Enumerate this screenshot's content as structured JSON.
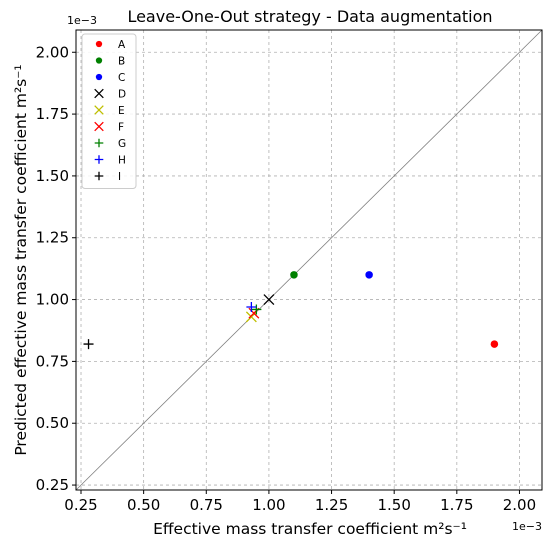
{
  "chart_data": {
    "type": "scatter",
    "title": "Leave-One-Out strategy - Data augmentation",
    "xlabel": "Effective mass transfer coefficient m²s⁻¹",
    "ylabel": "Predicted effective mass transfer coefficient m²s⁻¹",
    "x_offset_label": "1e−3",
    "y_offset_label": "1e−3",
    "xlim": [
      0.23,
      2.09
    ],
    "ylim": [
      0.23,
      2.09
    ],
    "x_ticks": [
      "0.25",
      "0.50",
      "0.75",
      "1.00",
      "1.25",
      "1.50",
      "1.75",
      "2.00"
    ],
    "y_ticks": [
      "0.25",
      "0.50",
      "0.75",
      "1.00",
      "1.25",
      "1.50",
      "1.75",
      "2.00"
    ],
    "tick_values": [
      0.25,
      0.5,
      0.75,
      1.0,
      1.25,
      1.5,
      1.75,
      2.0
    ],
    "grid": true,
    "reference_line": "y = x",
    "legend_position": "top-left",
    "series": [
      {
        "name": "A",
        "marker": "dot",
        "color": "#ff0000",
        "points": [
          [
            1.9,
            0.82
          ]
        ]
      },
      {
        "name": "B",
        "marker": "dot",
        "color": "#008000",
        "points": [
          [
            1.1,
            1.1
          ]
        ]
      },
      {
        "name": "C",
        "marker": "dot",
        "color": "#0000ff",
        "points": [
          [
            1.4,
            1.1
          ]
        ]
      },
      {
        "name": "D",
        "marker": "x",
        "color": "#000000",
        "points": [
          [
            1.0,
            1.0
          ]
        ]
      },
      {
        "name": "E",
        "marker": "x",
        "color": "#bfbf00",
        "points": [
          [
            0.93,
            0.93
          ]
        ]
      },
      {
        "name": "F",
        "marker": "x",
        "color": "#ff0000",
        "points": [
          [
            0.94,
            0.945
          ]
        ]
      },
      {
        "name": "G",
        "marker": "plus",
        "color": "#008000",
        "points": [
          [
            0.95,
            0.96
          ]
        ]
      },
      {
        "name": "H",
        "marker": "plus",
        "color": "#0000ff",
        "points": [
          [
            0.93,
            0.97
          ]
        ]
      },
      {
        "name": "I",
        "marker": "plus",
        "color": "#000000",
        "points": [
          [
            0.28,
            0.82
          ]
        ]
      }
    ]
  }
}
